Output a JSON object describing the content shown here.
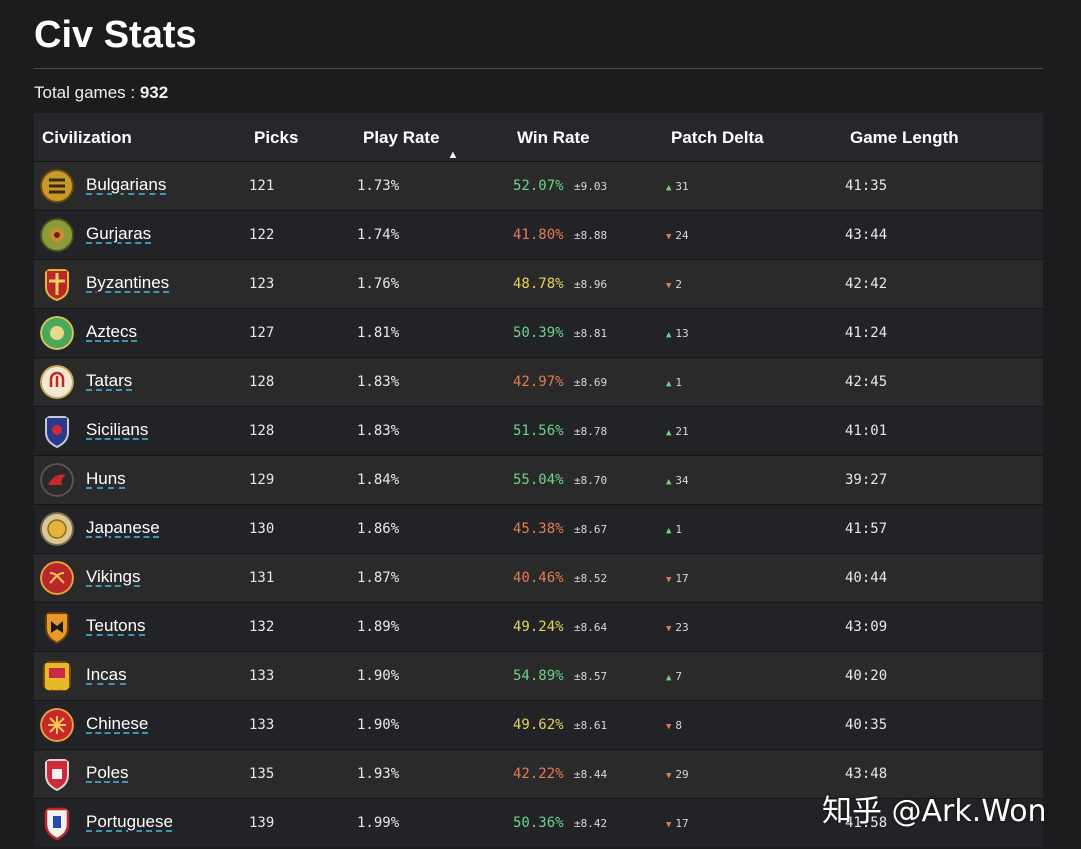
{
  "page": {
    "title": "Civ Stats",
    "total_label": "Total games :",
    "total_value": "932"
  },
  "columns": {
    "civilization": "Civilization",
    "picks": "Picks",
    "play_rate": "Play Rate",
    "win_rate": "Win Rate",
    "patch_delta": "Patch Delta",
    "game_length": "Game Length",
    "sort_indicator": "▲"
  },
  "colors": {
    "positive": "#6fd389",
    "negative": "#e47b56",
    "neutral": "#e6d25c"
  },
  "rows": [
    {
      "name": "Bulgarians",
      "icon": "bulgarians-crest-icon",
      "picks": "121",
      "play_rate": "1.73%",
      "win_rate": "52.07%",
      "win_tone": "green",
      "err": "±9.03",
      "delta_dir": "up",
      "delta": "31",
      "length": "41:35"
    },
    {
      "name": "Gurjaras",
      "icon": "gurjaras-crest-icon",
      "picks": "122",
      "play_rate": "1.74%",
      "win_rate": "41.80%",
      "win_tone": "red",
      "err": "±8.88",
      "delta_dir": "down",
      "delta": "24",
      "length": "43:44"
    },
    {
      "name": "Byzantines",
      "icon": "byzantines-shield-icon",
      "picks": "123",
      "play_rate": "1.76%",
      "win_rate": "48.78%",
      "win_tone": "yellow",
      "err": "±8.96",
      "delta_dir": "down",
      "delta": "2",
      "length": "42:42"
    },
    {
      "name": "Aztecs",
      "icon": "aztecs-crest-icon",
      "picks": "127",
      "play_rate": "1.81%",
      "win_rate": "50.39%",
      "win_tone": "green",
      "err": "±8.81",
      "delta_dir": "up",
      "delta": "13",
      "length": "41:24"
    },
    {
      "name": "Tatars",
      "icon": "tatars-crest-icon",
      "picks": "128",
      "play_rate": "1.83%",
      "win_rate": "42.97%",
      "win_tone": "red",
      "err": "±8.69",
      "delta_dir": "up",
      "delta": "1",
      "length": "42:45"
    },
    {
      "name": "Sicilians",
      "icon": "sicilians-shield-icon",
      "picks": "128",
      "play_rate": "1.83%",
      "win_rate": "51.56%",
      "win_tone": "green",
      "err": "±8.78",
      "delta_dir": "up",
      "delta": "21",
      "length": "41:01"
    },
    {
      "name": "Huns",
      "icon": "huns-crest-icon",
      "picks": "129",
      "play_rate": "1.84%",
      "win_rate": "55.04%",
      "win_tone": "green",
      "err": "±8.70",
      "delta_dir": "up",
      "delta": "34",
      "length": "39:27"
    },
    {
      "name": "Japanese",
      "icon": "japanese-crest-icon",
      "picks": "130",
      "play_rate": "1.86%",
      "win_rate": "45.38%",
      "win_tone": "red",
      "err": "±8.67",
      "delta_dir": "up",
      "delta": "1",
      "length": "41:57"
    },
    {
      "name": "Vikings",
      "icon": "vikings-crest-icon",
      "picks": "131",
      "play_rate": "1.87%",
      "win_rate": "40.46%",
      "win_tone": "red",
      "err": "±8.52",
      "delta_dir": "down",
      "delta": "17",
      "length": "40:44"
    },
    {
      "name": "Teutons",
      "icon": "teutons-shield-icon",
      "picks": "132",
      "play_rate": "1.89%",
      "win_rate": "49.24%",
      "win_tone": "yellow",
      "err": "±8.64",
      "delta_dir": "down",
      "delta": "23",
      "length": "43:09"
    },
    {
      "name": "Incas",
      "icon": "incas-banner-icon",
      "picks": "133",
      "play_rate": "1.90%",
      "win_rate": "54.89%",
      "win_tone": "green",
      "err": "±8.57",
      "delta_dir": "up",
      "delta": "7",
      "length": "40:20"
    },
    {
      "name": "Chinese",
      "icon": "chinese-crest-icon",
      "picks": "133",
      "play_rate": "1.90%",
      "win_rate": "49.62%",
      "win_tone": "yellow",
      "err": "±8.61",
      "delta_dir": "down",
      "delta": "8",
      "length": "40:35"
    },
    {
      "name": "Poles",
      "icon": "poles-shield-icon",
      "picks": "135",
      "play_rate": "1.93%",
      "win_rate": "42.22%",
      "win_tone": "red",
      "err": "±8.44",
      "delta_dir": "down",
      "delta": "29",
      "length": "43:48"
    },
    {
      "name": "Portuguese",
      "icon": "portuguese-shield-icon",
      "picks": "139",
      "play_rate": "1.99%",
      "win_rate": "50.36%",
      "win_tone": "green",
      "err": "±8.42",
      "delta_dir": "down",
      "delta": "17",
      "length": "41:58"
    }
  ],
  "watermark": "知乎 @Ark.Won"
}
